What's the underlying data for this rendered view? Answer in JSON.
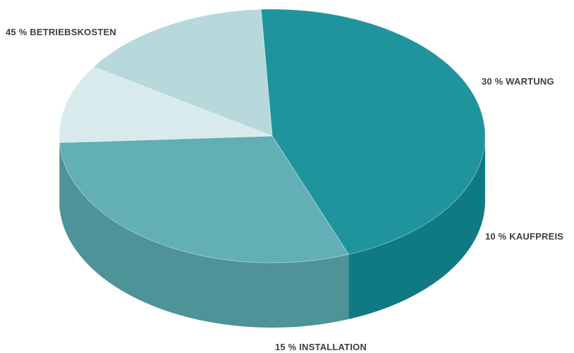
{
  "chart_data": {
    "type": "pie",
    "style": "3d",
    "categories": [
      "Betriebskosten",
      "Wartung",
      "Kaufpreis",
      "Installation"
    ],
    "values": [
      45,
      30,
      10,
      15
    ],
    "data_labels": [
      "45 % BETRIEBSKOSTEN",
      "30 % WARTUNG",
      "10 % KAUFPREIS",
      "15 % INSTALLATION"
    ],
    "colors": [
      "#138e98",
      "#5aabb1",
      "#d7e9eb",
      "#b3d7da"
    ],
    "title": "",
    "legend": "none"
  }
}
